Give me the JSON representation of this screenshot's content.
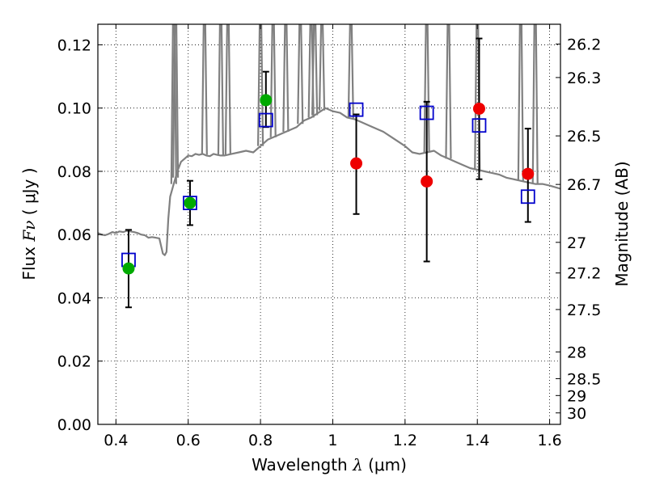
{
  "chart_data": {
    "type": "scatter",
    "xlabel": {
      "prefix": "Wavelength ",
      "symbol": "λ",
      "unit": " (μm)"
    },
    "ylabel": {
      "prefix": "Flux ",
      "symbol": "Fν",
      "unit": " ( μJy )"
    },
    "y2label": "Magnitude (AB)",
    "xlim": [
      0.35,
      1.63
    ],
    "ylim": [
      0.0,
      0.1265
    ],
    "grid": true,
    "x_ticks": [
      {
        "value": 0.4,
        "label": "0.4"
      },
      {
        "value": 0.6,
        "label": "0.6"
      },
      {
        "value": 0.8,
        "label": "0.8"
      },
      {
        "value": 1.0,
        "label": "1"
      },
      {
        "value": 1.2,
        "label": "1.2"
      },
      {
        "value": 1.4,
        "label": "1.4"
      },
      {
        "value": 1.6,
        "label": "1.6"
      }
    ],
    "y_ticks": [
      {
        "value": 0.0,
        "label": "0.00"
      },
      {
        "value": 0.02,
        "label": "0.02"
      },
      {
        "value": 0.04,
        "label": "0.04"
      },
      {
        "value": 0.06,
        "label": "0.06"
      },
      {
        "value": 0.08,
        "label": "0.08"
      },
      {
        "value": 0.1,
        "label": "0.10"
      },
      {
        "value": 0.12,
        "label": "0.12"
      }
    ],
    "mag_ticks": [
      {
        "value": 26.2,
        "label": "26.2"
      },
      {
        "value": 26.3,
        "label": "26.3"
      },
      {
        "value": 26.5,
        "label": "26.5"
      },
      {
        "value": 26.7,
        "label": "26.7"
      },
      {
        "value": 27.0,
        "label": "27"
      },
      {
        "value": 27.2,
        "label": "27.2"
      },
      {
        "value": 27.5,
        "label": "27.5"
      },
      {
        "value": 28.0,
        "label": "28"
      },
      {
        "value": 28.5,
        "label": "28.5"
      },
      {
        "value": 29.0,
        "label": "29"
      },
      {
        "value": 30.0,
        "label": "30"
      }
    ],
    "series": [
      {
        "name": "model-sed",
        "kind": "line",
        "color": "#808080",
        "x": [
          0.35,
          0.36,
          0.37,
          0.38,
          0.39,
          0.4,
          0.41,
          0.42,
          0.43,
          0.44,
          0.45,
          0.46,
          0.47,
          0.48,
          0.49,
          0.5,
          0.51,
          0.52,
          0.53,
          0.535,
          0.54,
          0.545,
          0.55,
          0.56,
          0.57,
          0.58,
          0.59,
          0.6,
          0.61,
          0.62,
          0.63,
          0.64,
          0.65,
          0.66,
          0.67,
          0.68,
          0.69,
          0.7,
          0.72,
          0.74,
          0.76,
          0.78,
          0.8,
          0.82,
          0.84,
          0.86,
          0.88,
          0.9,
          0.92,
          0.94,
          0.96,
          0.98,
          1.0,
          1.02,
          1.04,
          1.06,
          1.08,
          1.1,
          1.12,
          1.14,
          1.16,
          1.18,
          1.2,
          1.22,
          1.24,
          1.26,
          1.28,
          1.3,
          1.32,
          1.34,
          1.36,
          1.38,
          1.4,
          1.42,
          1.44,
          1.46,
          1.48,
          1.5,
          1.52,
          1.54,
          1.56,
          1.58,
          1.6,
          1.63
        ],
        "y": [
          0.0605,
          0.06,
          0.0598,
          0.0602,
          0.0608,
          0.0605,
          0.061,
          0.0608,
          0.0612,
          0.061,
          0.0608,
          0.0605,
          0.06,
          0.0598,
          0.059,
          0.0592,
          0.059,
          0.0588,
          0.054,
          0.0535,
          0.0545,
          0.065,
          0.072,
          0.076,
          0.08,
          0.083,
          0.084,
          0.085,
          0.0848,
          0.0855,
          0.0852,
          0.0855,
          0.085,
          0.0848,
          0.0855,
          0.0852,
          0.085,
          0.085,
          0.0855,
          0.086,
          0.0865,
          0.086,
          0.088,
          0.09,
          0.091,
          0.092,
          0.093,
          0.094,
          0.096,
          0.097,
          0.0985,
          0.1,
          0.099,
          0.0985,
          0.097,
          0.0965,
          0.0955,
          0.0945,
          0.0935,
          0.0925,
          0.091,
          0.0895,
          0.088,
          0.086,
          0.0855,
          0.086,
          0.0865,
          0.085,
          0.084,
          0.083,
          0.082,
          0.081,
          0.0805,
          0.08,
          0.0795,
          0.079,
          0.078,
          0.0775,
          0.077,
          0.0765,
          0.076,
          0.076,
          0.0755,
          0.0745
        ]
      },
      {
        "name": "emission-lines",
        "kind": "spikes",
        "color": "#808080",
        "x": [
          0.56,
          0.565,
          0.645,
          0.69,
          0.71,
          0.8,
          0.835,
          0.87,
          0.91,
          0.94,
          0.95,
          0.97,
          1.05,
          1.26,
          1.32,
          1.4,
          1.52,
          1.56
        ],
        "y": [
          0.1265,
          0.1265,
          0.1265,
          0.1265,
          0.1265,
          0.1265,
          0.1265,
          0.1265,
          0.1265,
          0.1265,
          0.1265,
          0.1265,
          0.1265,
          0.1265,
          0.1265,
          0.1265,
          0.1265,
          0.1265
        ]
      },
      {
        "name": "model-photometry",
        "kind": "open-squares",
        "color": "#0000cc",
        "x": [
          0.435,
          0.605,
          0.815,
          1.065,
          1.26,
          1.405,
          1.54
        ],
        "y": [
          0.052,
          0.07,
          0.0962,
          0.0995,
          0.0985,
          0.0945,
          0.072
        ]
      },
      {
        "name": "observed-green",
        "kind": "filled-circles",
        "color": "#00aa00",
        "x": [
          0.435,
          0.605,
          0.815
        ],
        "y": [
          0.0493,
          0.07,
          0.1025
        ]
      },
      {
        "name": "observed-red",
        "kind": "filled-circles",
        "color": "#ee0000",
        "x": [
          1.065,
          1.26,
          1.405,
          1.54
        ],
        "y": [
          0.0825,
          0.0768,
          0.0998,
          0.0792
        ]
      }
    ],
    "error_bars": [
      {
        "x": 0.435,
        "low": 0.037,
        "high": 0.0615
      },
      {
        "x": 0.605,
        "low": 0.063,
        "high": 0.077
      },
      {
        "x": 0.815,
        "low": 0.094,
        "high": 0.1115
      },
      {
        "x": 1.065,
        "low": 0.0665,
        "high": 0.098
      },
      {
        "x": 1.26,
        "low": 0.0515,
        "high": 0.102
      },
      {
        "x": 1.405,
        "low": 0.0775,
        "high": 0.122
      },
      {
        "x": 1.54,
        "low": 0.064,
        "high": 0.0935
      }
    ]
  }
}
